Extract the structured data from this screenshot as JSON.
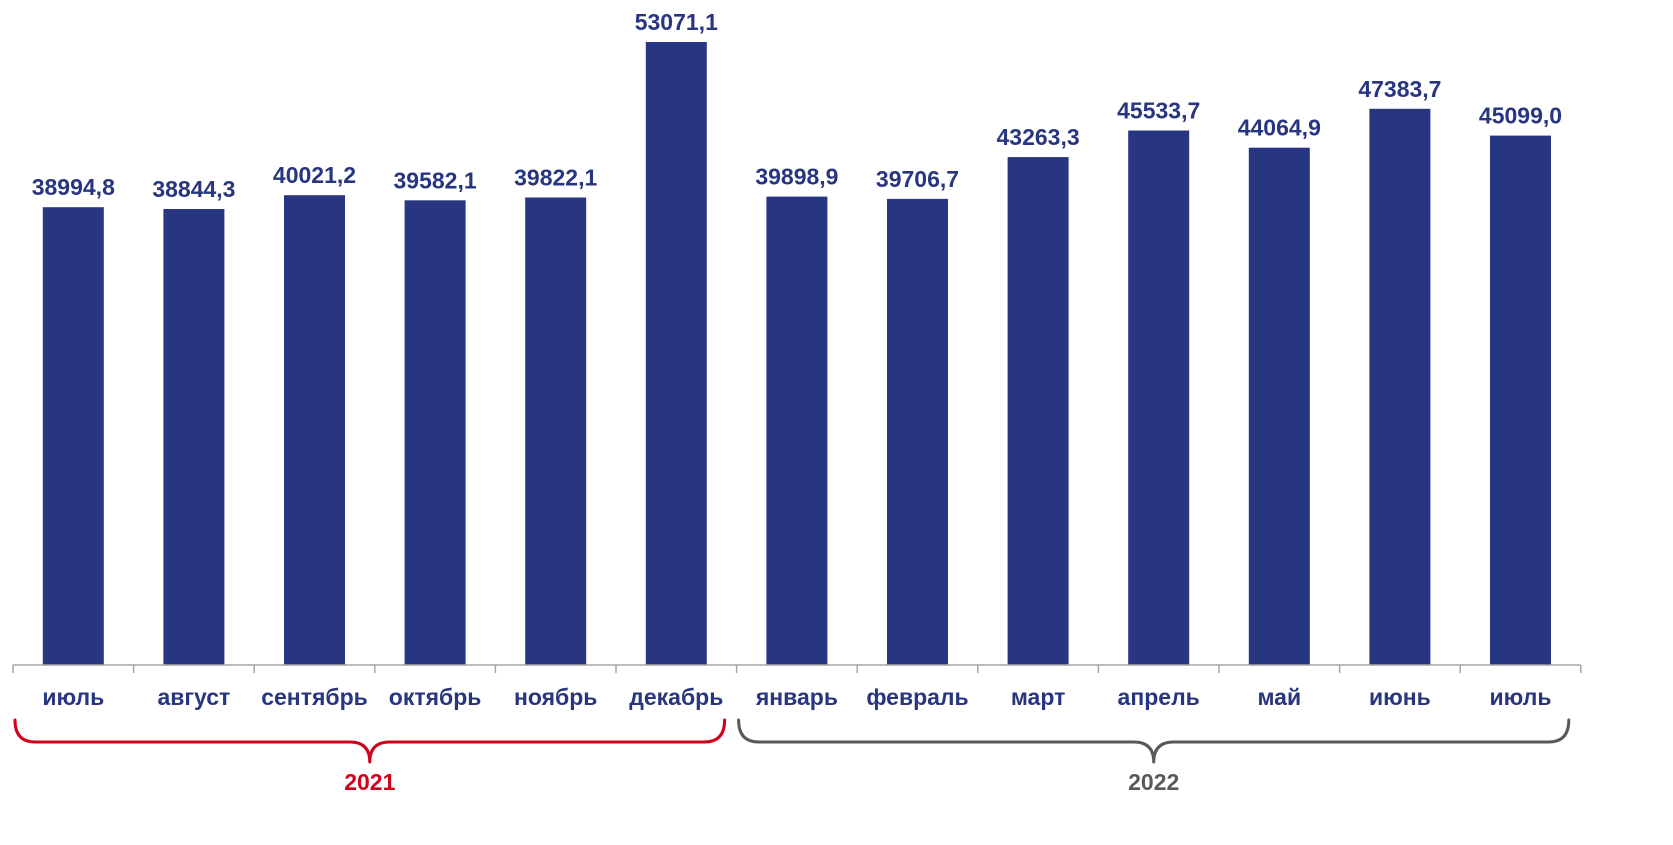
{
  "chart_data": {
    "type": "bar",
    "title": "",
    "xlabel": "",
    "ylabel": "",
    "categories": [
      "июль",
      "август",
      "сентябрь",
      "октябрь",
      "ноябрь",
      "декабрь",
      "январь",
      "февраль",
      "март",
      "апрель",
      "май",
      "июнь",
      "июль"
    ],
    "values": [
      38994.8,
      38844.3,
      40021.2,
      39582.1,
      39822.1,
      53071.1,
      39898.9,
      39706.7,
      43263.3,
      45533.7,
      44064.9,
      47383.7,
      45099.0
    ],
    "value_labels": [
      "38994,8",
      "38844,3",
      "40021,2",
      "39582,1",
      "39822,1",
      "53071,1",
      "39898,9",
      "39706,7",
      "43263,3",
      "45533,7",
      "44064,9",
      "47383,7",
      "45099,0"
    ],
    "ylim": [
      0,
      53071.1
    ],
    "grid": false,
    "groups": [
      {
        "label": "2021",
        "start": 0,
        "end": 5,
        "color": "#d0021b"
      },
      {
        "label": "2022",
        "start": 6,
        "end": 12,
        "color": "#595959"
      }
    ]
  },
  "colors": {
    "bar": "#283580",
    "label": "#283580",
    "axis": "#a6a6a6"
  }
}
